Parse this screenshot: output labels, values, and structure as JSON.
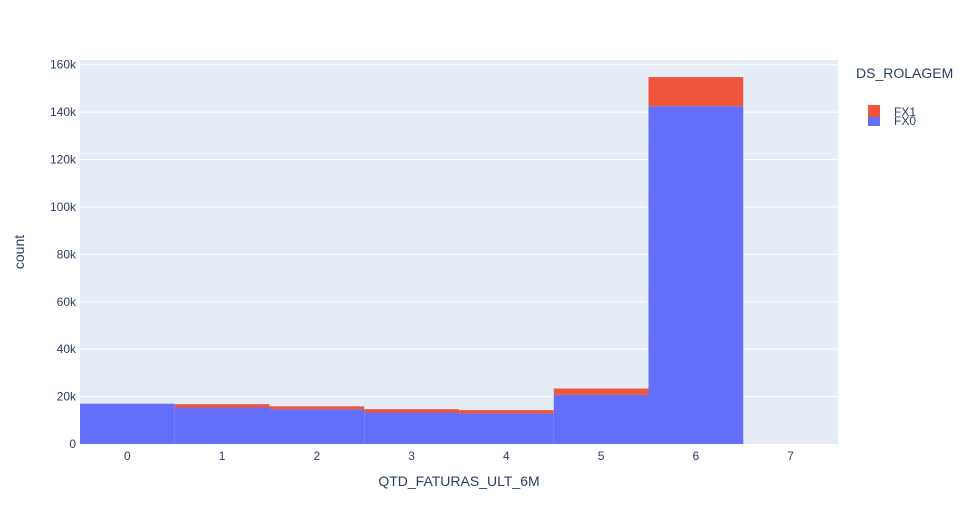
{
  "chart_data": {
    "type": "bar",
    "stacked": true,
    "xlabel": "QTD_FATURAS_ULT_6M",
    "ylabel": "count",
    "categories": [
      "0",
      "1",
      "2",
      "3",
      "4",
      "5",
      "6",
      "7"
    ],
    "x_tick_labels": [
      "0",
      "1",
      "2",
      "3",
      "4",
      "5",
      "6",
      "7"
    ],
    "y_tick_values": [
      0,
      20000,
      40000,
      60000,
      80000,
      100000,
      120000,
      140000,
      160000
    ],
    "y_tick_labels": [
      "0",
      "20k",
      "40k",
      "60k",
      "80k",
      "100k",
      "120k",
      "140k",
      "160k"
    ],
    "ylim": [
      0,
      162000
    ],
    "grid": true,
    "legend": {
      "title": "DS_ROLAGEM",
      "placement": "top-right"
    },
    "series": [
      {
        "name": "FX0",
        "color": "#636efa",
        "values": [
          17000,
          15400,
          14600,
          13300,
          12900,
          20800,
          142500,
          0
        ]
      },
      {
        "name": "FX1",
        "color": "#ef553b",
        "values": [
          0,
          1400,
          1300,
          1400,
          1400,
          2600,
          12300,
          0
        ]
      }
    ]
  }
}
